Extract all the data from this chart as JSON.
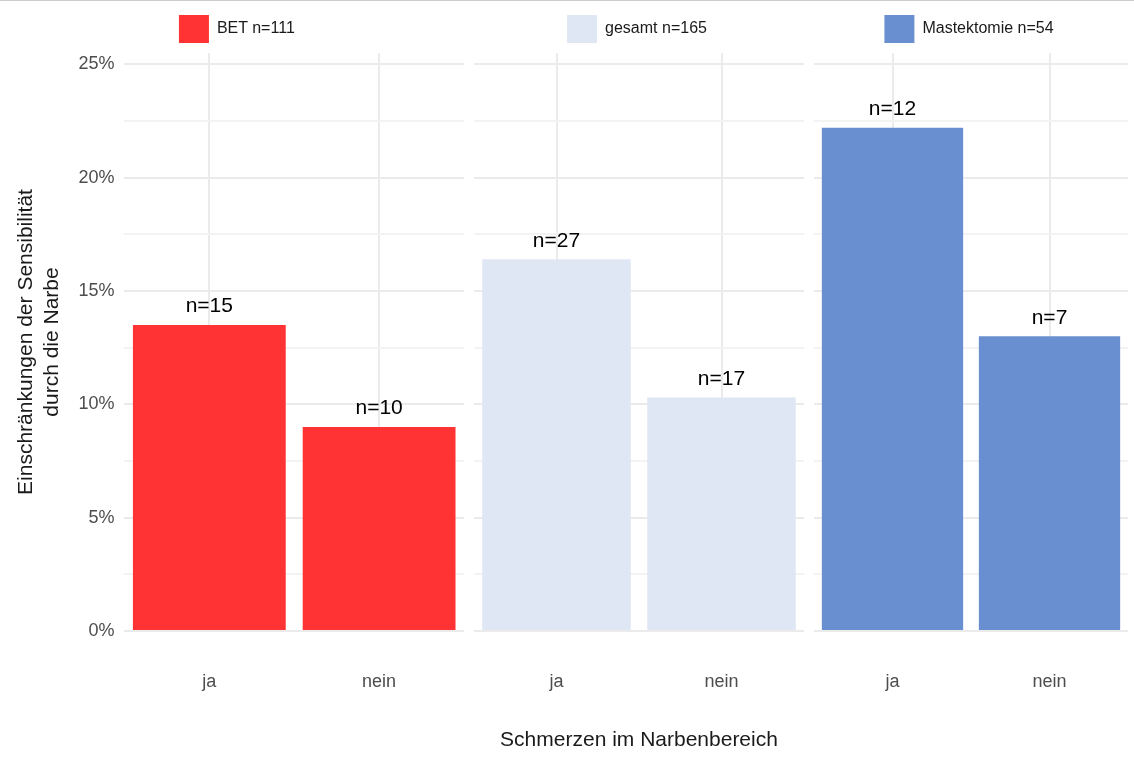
{
  "chart_data": [
    {
      "type": "bar",
      "categories": [
        "ja",
        "nein"
      ],
      "ylabel": "Einschränkungen der Sensibilität\ndurch die Narbe",
      "legend": "top",
      "grid": true,
      "ylim": [
        0,
        25.5
      ],
      "yticks": [
        {
          "value": 0,
          "label": "0%"
        },
        {
          "value": 2.5,
          "label": null
        },
        {
          "value": 5,
          "label": "5%"
        },
        {
          "value": 7.5,
          "label": null
        },
        {
          "value": 10,
          "label": "10%"
        },
        {
          "value": 12.5,
          "label": null
        },
        {
          "value": 15,
          "label": "15%"
        },
        {
          "value": 17.5,
          "label": null
        },
        {
          "value": 20,
          "label": "20%"
        },
        {
          "value": 22.5,
          "label": null
        },
        {
          "value": 25,
          "label": "25%"
        }
      ],
      "annotations": [
        {
          "text": "n=15",
          "x": "ja",
          "y": 13.5
        },
        {
          "text": "n=10",
          "x": "nein",
          "y": 9.0
        }
      ],
      "series": [
        {
          "name": "BET n=111",
          "color": "#ff3333",
          "values": [
            13.5,
            9.0
          ]
        }
      ]
    },
    {
      "type": "bar",
      "categories": [
        "ja",
        "nein"
      ],
      "xlabel": "Schmerzen im Narbenbereich",
      "legend": "top",
      "grid": true,
      "tick_labels": "x",
      "ylim": [
        0,
        25.5
      ],
      "yticks": [
        0,
        {
          "value": 2.5,
          "label": null
        },
        5,
        {
          "value": 7.5,
          "label": null
        },
        10,
        {
          "value": 12.5,
          "label": null
        },
        15,
        {
          "value": 17.5,
          "label": null
        },
        20,
        {
          "value": 22.5,
          "label": null
        },
        25
      ],
      "annotations": [
        {
          "text": "n=27",
          "x": "ja",
          "y": 16.4
        },
        {
          "text": "n=17",
          "x": "nein",
          "y": 10.3
        }
      ],
      "series": [
        {
          "name": "gesamt n=165",
          "color": "#dfe6f4",
          "values": [
            16.4,
            10.3
          ]
        }
      ]
    },
    {
      "type": "bar",
      "categories": [
        "ja",
        "nein"
      ],
      "legend": "top",
      "grid": true,
      "tick_labels": "x",
      "ylim": [
        0,
        25.5
      ],
      "yticks": [
        0,
        {
          "value": 2.5,
          "label": null
        },
        5,
        {
          "value": 7.5,
          "label": null
        },
        10,
        {
          "value": 12.5,
          "label": null
        },
        15,
        {
          "value": 17.5,
          "label": null
        },
        20,
        {
          "value": 22.5,
          "label": null
        },
        25
      ],
      "annotations": [
        {
          "text": "n=12",
          "x": "ja",
          "y": 22.2
        },
        {
          "text": "n=7",
          "x": "nein",
          "y": 13.0
        }
      ],
      "series": [
        {
          "name": "Mastektomie n=54",
          "color": "#6a8fd0",
          "values": [
            22.2,
            13.0
          ]
        }
      ]
    }
  ]
}
